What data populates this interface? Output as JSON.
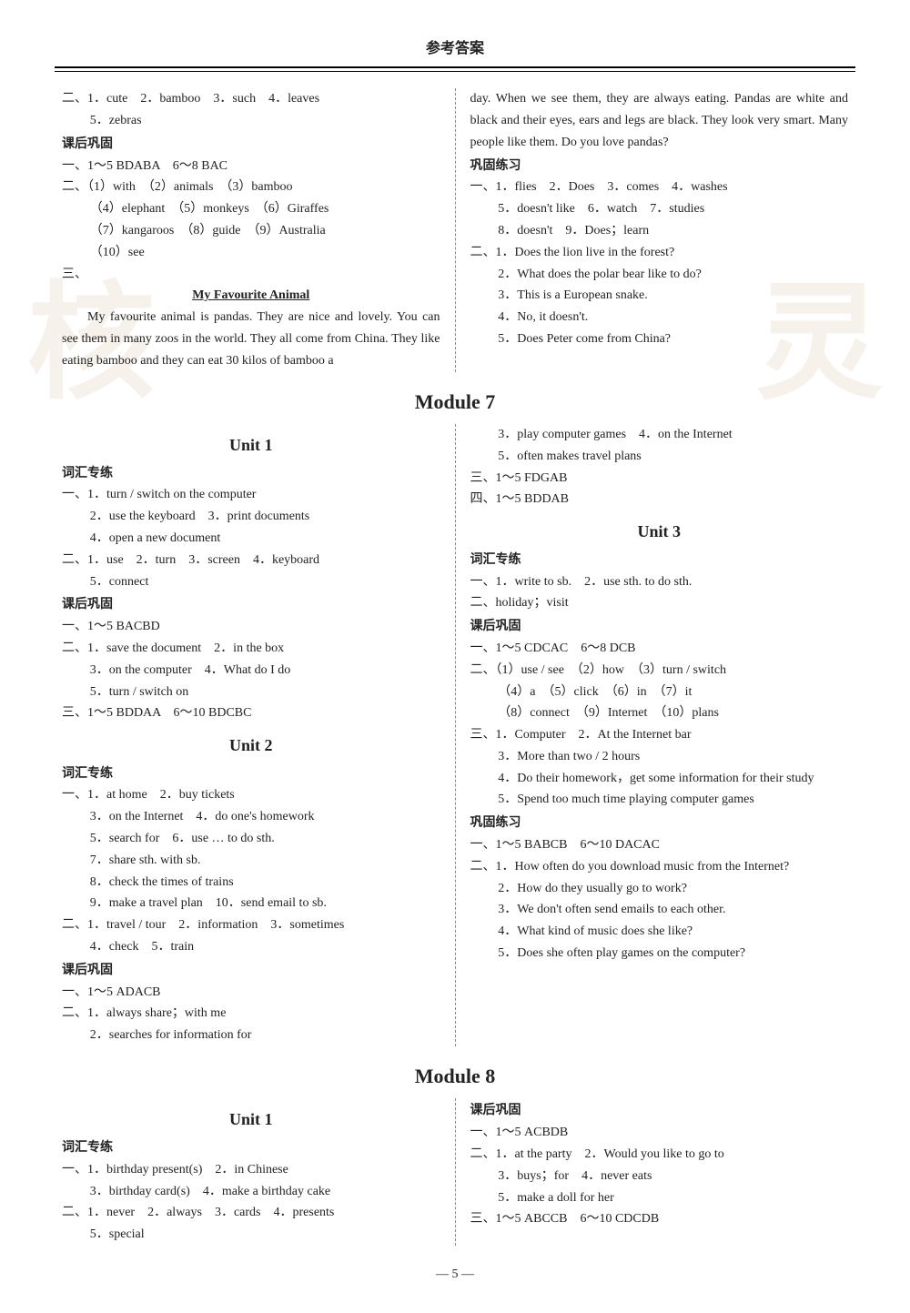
{
  "header": {
    "title": "参考答案"
  },
  "watermark": {
    "left": "核",
    "right": "灵"
  },
  "page_number": "— 5 —",
  "top_left": {
    "l1": "二、1．cute　2．bamboo　3．such　4．leaves",
    "l2": "5．zebras",
    "sec1": "课后巩固",
    "l3": "一、1～5 BDABA　6～8 BAC",
    "l4": "二、（1）with　（2）animals　（3）bamboo",
    "l5": "（4）elephant　（5）monkeys　（6）Giraffes",
    "l6": "（7）kangaroos　（8）guide　（9）Australia",
    "l7": "（10）see",
    "l8": "三、",
    "essay_title": "My Favourite Animal",
    "p1": "My favourite animal is pandas. They are nice and lovely. You can see them in many zoos in the world. They all come from China. They like eating bamboo and they can eat 30 kilos of bamboo a"
  },
  "top_right": {
    "p1": "day. When we see them, they are always eating. Pandas are white and black and their eyes, ears and legs are black. They look very smart. Many people like them. Do you love pandas?",
    "sec1": "巩固练习",
    "l1": "一、1．flies　2．Does　3．comes　4．washes",
    "l2": "5．doesn't like　6．watch　7．studies",
    "l3": "8．doesn't　9．Does；learn",
    "l4": "二、1．Does the lion live in the forest?",
    "l5": "2．What does the polar bear like to do?",
    "l6": "3．This is a European snake.",
    "l7": "4．No, it doesn't.",
    "l8": "5．Does Peter come from China?"
  },
  "module7": "Module 7",
  "m7_left": {
    "unit1": "Unit 1",
    "sec1": "词汇专练",
    "l1": "一、1．turn / switch on the computer",
    "l2": "2．use the keyboard　3．print documents",
    "l3": "4．open a new document",
    "l4": "二、1．use　2．turn　3．screen　4．keyboard",
    "l5": "5．connect",
    "sec2": "课后巩固",
    "l6": "一、1～5 BACBD",
    "l7": "二、1．save the document　2．in the box",
    "l8": "3．on the computer　4．What do I do",
    "l9": "5．turn / switch on",
    "l10": "三、1～5 BDDAA　6～10 BDCBC",
    "unit2": "Unit 2",
    "sec3": "词汇专练",
    "l11": "一、1．at home　2．buy tickets",
    "l12": "3．on the Internet　4．do one's homework",
    "l13": "5．search for　6．use … to do sth.",
    "l14": "7．share sth. with sb.",
    "l15": "8．check the times of trains",
    "l16": "9．make a travel plan　10．send email to sb.",
    "l17": "二、1．travel / tour　2．information　3．sometimes",
    "l18": "4．check　5．train",
    "sec4": "课后巩固",
    "l19": "一、1～5 ADACB",
    "l20": "二、1．always share；with me",
    "l21": "2．searches for information for"
  },
  "m7_right": {
    "l1": "3．play computer games　4．on the Internet",
    "l2": "5．often makes travel plans",
    "l3": "三、1～5 FDGAB",
    "l4": "四、1～5 BDDAB",
    "unit3": "Unit 3",
    "sec1": "词汇专练",
    "l5": "一、1．write to sb.　2．use sth. to do sth.",
    "l6": "二、holiday；visit",
    "sec2": "课后巩固",
    "l7": "一、1～5 CDCAC　6～8 DCB",
    "l8": "二、（1）use / see　（2）how　（3）turn / switch",
    "l9": "（4）a　（5）click　（6）in　（7）it",
    "l10": "（8）connect　（9）Internet　（10）plans",
    "l11": "三、1．Computer　2．At the Internet bar",
    "l12": "3．More than two / 2 hours",
    "l13": "4．Do their homework，get some information for their study",
    "l14": "5．Spend too much time playing computer games",
    "sec3": "巩固练习",
    "l15": "一、1～5 BABCB　6～10 DACAC",
    "l16": "二、1．How often do you download music from the Internet?",
    "l17": "2．How do they usually go to work?",
    "l18": "3．We don't often send emails to each other.",
    "l19": "4．What kind of music does she like?",
    "l20": "5．Does she often play games on the computer?"
  },
  "module8": "Module 8",
  "m8_left": {
    "unit1": "Unit 1",
    "sec1": "词汇专练",
    "l1": "一、1．birthday present(s)　2．in Chinese",
    "l2": "3．birthday card(s)　4．make a birthday cake",
    "l3": "二、1．never　2．always　3．cards　4．presents",
    "l4": "5．special"
  },
  "m8_right": {
    "sec1": "课后巩固",
    "l1": "一、1～5 ACBDB",
    "l2": "二、1．at the party　2．Would you like to go to",
    "l3": "3．buys；for　4．never eats",
    "l4": "5．make a doll for her",
    "l5": "三、1～5 ABCCB　6～10 CDCDB"
  }
}
